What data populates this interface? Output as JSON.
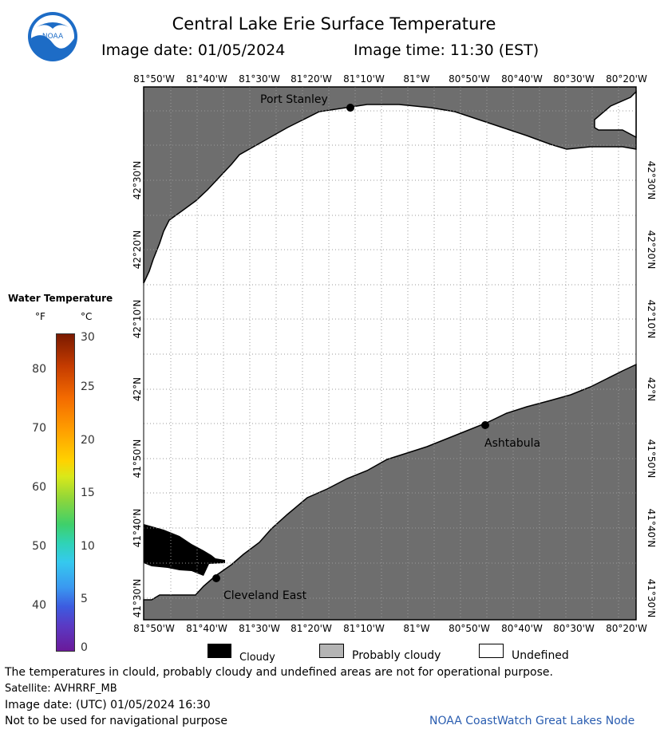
{
  "header": {
    "title": "Central Lake Erie Surface Temperature",
    "image_date": "Image date: 01/05/2024",
    "image_time": "Image time: 11:30 (EST)",
    "logo_text": "NOAA"
  },
  "map": {
    "lon_labels": [
      "81°50'W",
      "81°40'W",
      "81°30'W",
      "81°20'W",
      "81°10'W",
      "81°W",
      "80°50'W",
      "80°40'W",
      "80°30'W",
      "80°20'W"
    ],
    "lat_labels": [
      "42°30'N",
      "42°20'N",
      "42°10'N",
      "42°N",
      "41°50'N",
      "41°40'N",
      "41°30'N"
    ],
    "cities": [
      {
        "name": "Port Stanley"
      },
      {
        "name": "Ashtabula"
      },
      {
        "name": "Cleveland East"
      }
    ],
    "colors": {
      "land": "#6e6e6e",
      "water": "#ffffff",
      "cloud": "#000000",
      "grid": "#9a9a9a"
    }
  },
  "legend": {
    "title": "Water Temperature",
    "unit_f": "°F",
    "unit_c": "°C",
    "f_ticks": [
      "80",
      "70",
      "60",
      "50",
      "40"
    ],
    "c_ticks": [
      "30",
      "25",
      "20",
      "15",
      "10",
      "5",
      "0"
    ]
  },
  "key": {
    "cloudy": "Cloudy",
    "probably_cloudy": "Probably cloudy",
    "undefined": "Undefined",
    "colors": {
      "cloudy": "#000000",
      "probably_cloudy": "#b4b4b4",
      "undefined": "#ffffff"
    }
  },
  "footer": {
    "disclaimer": "The temperatures in clould, probably cloudy and undefined areas are not for operational purpose.",
    "satellite": "Satellite: AVHRRF_MB",
    "image_date_utc": "Image date: (UTC) 01/05/2024  16:30",
    "nav_warning": "Not to be used for navigational purpose",
    "credit": "NOAA CoastWatch Great Lakes Node"
  }
}
